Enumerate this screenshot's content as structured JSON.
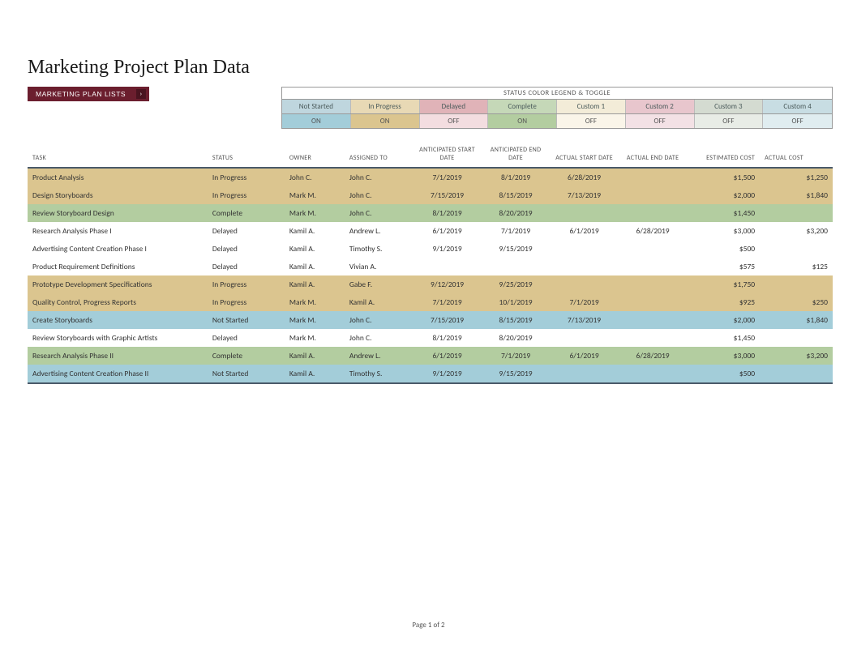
{
  "title": "Marketing Project Plan Data",
  "listsButton": "MARKETING PLAN LISTS",
  "legendTitle": "STATUS COLOR LEGEND & TOGGLE",
  "legend": [
    {
      "label": "Not Started",
      "color": "#bfd6de",
      "toggle": "ON",
      "toggleBg": "#a3cdd9"
    },
    {
      "label": "In Progress",
      "color": "#e8d9b5",
      "toggle": "ON",
      "toggleBg": "#dbc58f"
    },
    {
      "label": "Delayed",
      "color": "#e0b3b8",
      "toggle": "OFF",
      "toggleBg": "#f3dde0"
    },
    {
      "label": "Complete",
      "color": "#c5d8b8",
      "toggle": "ON",
      "toggleBg": "#b3cda0"
    },
    {
      "label": "Custom 1",
      "color": "#f3ecd8",
      "toggle": "OFF",
      "toggleBg": "#faf5e9"
    },
    {
      "label": "Custom 2",
      "color": "#e8c6cd",
      "toggle": "OFF",
      "toggleBg": "#f3e1e5"
    },
    {
      "label": "Custom 3",
      "color": "#d4dbd1",
      "toggle": "OFF",
      "toggleBg": "#e8ece6"
    },
    {
      "label": "Custom 4",
      "color": "#c8dde3",
      "toggle": "OFF",
      "toggleBg": "#e0edf0"
    }
  ],
  "columns": {
    "task": "TASK",
    "status": "STATUS",
    "owner": "OWNER",
    "assigned": "ASSIGNED TO",
    "anticStart": "ANTICIPATED START DATE",
    "anticEnd": "ANTICIPATED END DATE",
    "actualStart": "ACTUAL START DATE",
    "actualEnd": "ACTUAL END DATE",
    "estCost": "ESTIMATED COST",
    "actCost": "ACTUAL COST"
  },
  "statusColors": {
    "Not Started": "#a3cdd9",
    "In Progress": "#dbc58f",
    "Delayed": "#ffffff",
    "Complete": "#b3cda0"
  },
  "rows": [
    {
      "task": "Product Analysis",
      "status": "In Progress",
      "owner": "John C.",
      "assigned": "John C.",
      "anticStart": "7/1/2019",
      "anticEnd": "8/1/2019",
      "actualStart": "6/28/2019",
      "actualEnd": "",
      "estCost": "$1,500",
      "actCost": "$1,250"
    },
    {
      "task": "Design Storyboards",
      "status": "In Progress",
      "owner": "Mark M.",
      "assigned": "John C.",
      "anticStart": "7/15/2019",
      "anticEnd": "8/15/2019",
      "actualStart": "7/13/2019",
      "actualEnd": "",
      "estCost": "$2,000",
      "actCost": "$1,840"
    },
    {
      "task": "Review Storyboard Design",
      "status": "Complete",
      "owner": "Mark M.",
      "assigned": "John C.",
      "anticStart": "8/1/2019",
      "anticEnd": "8/20/2019",
      "actualStart": "",
      "actualEnd": "",
      "estCost": "$1,450",
      "actCost": ""
    },
    {
      "task": "Research Analysis Phase I",
      "status": "Delayed",
      "owner": "Kamil A.",
      "assigned": "Andrew L.",
      "anticStart": "6/1/2019",
      "anticEnd": "7/1/2019",
      "actualStart": "6/1/2019",
      "actualEnd": "6/28/2019",
      "estCost": "$3,000",
      "actCost": "$3,200"
    },
    {
      "task": "Advertising Content Creation Phase I",
      "status": "Delayed",
      "owner": "Kamil A.",
      "assigned": "Timothy S.",
      "anticStart": "9/1/2019",
      "anticEnd": "9/15/2019",
      "actualStart": "",
      "actualEnd": "",
      "estCost": "$500",
      "actCost": ""
    },
    {
      "task": "Product Requirement Definitions",
      "status": "Delayed",
      "owner": "Kamil A.",
      "assigned": "Vivian A.",
      "anticStart": "",
      "anticEnd": "",
      "actualStart": "",
      "actualEnd": "",
      "estCost": "$575",
      "actCost": "$125"
    },
    {
      "task": "Prototype Development Specifications",
      "status": "In Progress",
      "owner": "Kamil A.",
      "assigned": "Gabe F.",
      "anticStart": "9/12/2019",
      "anticEnd": "9/25/2019",
      "actualStart": "",
      "actualEnd": "",
      "estCost": "$1,750",
      "actCost": ""
    },
    {
      "task": "Quality Control, Progress Reports",
      "status": "In Progress",
      "owner": "Mark M.",
      "assigned": "Kamil A.",
      "anticStart": "7/1/2019",
      "anticEnd": "10/1/2019",
      "actualStart": "7/1/2019",
      "actualEnd": "",
      "estCost": "$925",
      "actCost": "$250"
    },
    {
      "task": "Create Storyboards",
      "status": "Not Started",
      "owner": "Mark M.",
      "assigned": "John C.",
      "anticStart": "7/15/2019",
      "anticEnd": "8/15/2019",
      "actualStart": "7/13/2019",
      "actualEnd": "",
      "estCost": "$2,000",
      "actCost": "$1,840"
    },
    {
      "task": "Review Storyboards with Graphic Artists",
      "status": "Delayed",
      "owner": "Mark M.",
      "assigned": "John C.",
      "anticStart": "8/1/2019",
      "anticEnd": "8/20/2019",
      "actualStart": "",
      "actualEnd": "",
      "estCost": "$1,450",
      "actCost": ""
    },
    {
      "task": "Research Analysis Phase II",
      "status": "Complete",
      "owner": "Kamil A.",
      "assigned": "Andrew L.",
      "anticStart": "6/1/2019",
      "anticEnd": "7/1/2019",
      "actualStart": "6/1/2019",
      "actualEnd": "6/28/2019",
      "estCost": "$3,000",
      "actCost": "$3,200"
    },
    {
      "task": "Advertising Content Creation Phase II",
      "status": "Not Started",
      "owner": "Kamil A.",
      "assigned": "Timothy S.",
      "anticStart": "9/1/2019",
      "anticEnd": "9/15/2019",
      "actualStart": "",
      "actualEnd": "",
      "estCost": "$500",
      "actCost": ""
    }
  ],
  "footer": "Page 1 of 2"
}
